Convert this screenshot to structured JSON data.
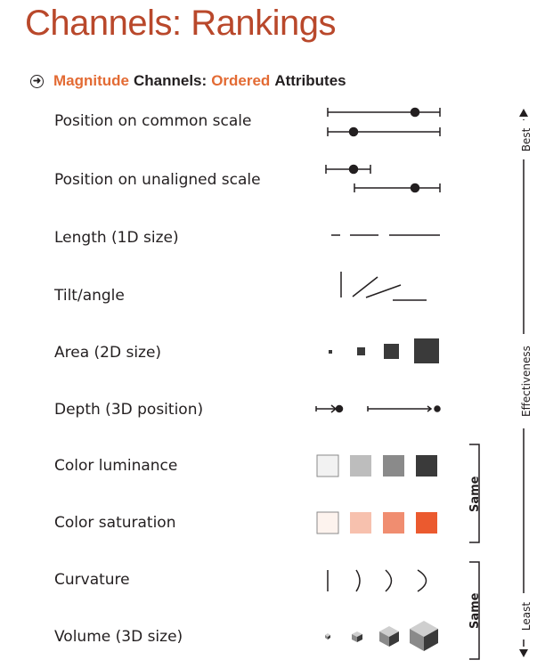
{
  "title": "Channels: Rankings",
  "subtitle": {
    "icon": "arrow-right-circle-icon",
    "part1": "Magnitude",
    "part2": "Channels:",
    "part3": "Ordered",
    "part4": "Attributes",
    "accent_color": "#e36b34"
  },
  "channels": [
    {
      "label": "Position on common scale",
      "glyph": "position-common-scale-glyph"
    },
    {
      "label": "Position on unaligned scale",
      "glyph": "position-unaligned-scale-glyph"
    },
    {
      "label": "Length (1D size)",
      "glyph": "length-glyph"
    },
    {
      "label": "Tilt/angle",
      "glyph": "tilt-angle-glyph"
    },
    {
      "label": "Area (2D size)",
      "glyph": "area-glyph"
    },
    {
      "label": "Depth (3D position)",
      "glyph": "depth-glyph"
    },
    {
      "label": "Color luminance",
      "glyph": "color-luminance-glyph",
      "colors": [
        "#f2f2f2",
        "#bdbdbd",
        "#8a8a8a",
        "#3a3a3a"
      ]
    },
    {
      "label": "Color saturation",
      "glyph": "color-saturation-glyph",
      "colors": [
        "#fdf3ee",
        "#f7c1ae",
        "#f08d70",
        "#eb5a2f"
      ]
    },
    {
      "label": "Curvature",
      "glyph": "curvature-glyph"
    },
    {
      "label": "Volume (3D size)",
      "glyph": "volume-glyph"
    }
  ],
  "effectiveness": {
    "best": "Best",
    "middle": "Effectiveness",
    "least": "Least"
  },
  "same_groups": [
    {
      "label": "Same",
      "rows": [
        "Color luminance",
        "Color saturation"
      ]
    },
    {
      "label": "Same",
      "rows": [
        "Curvature",
        "Volume (3D size)"
      ]
    }
  ]
}
